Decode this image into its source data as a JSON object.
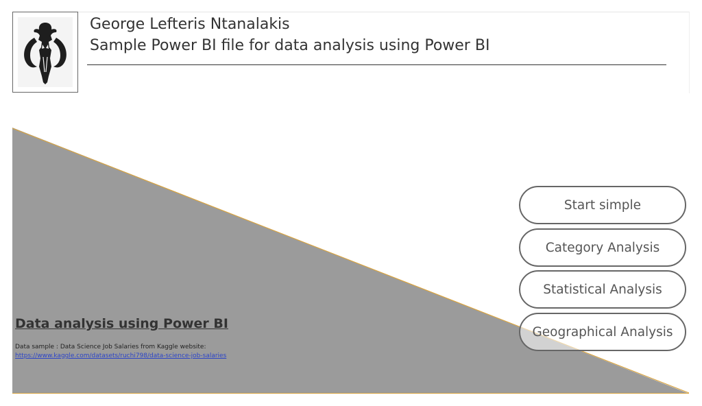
{
  "header": {
    "author": "George Lefteris Ntanalakis",
    "subtitle": "Sample Power BI file for data analysis using Power BI",
    "logo_icon": "mandalorian-mythosaur-skull-icon"
  },
  "main": {
    "title": "Data analysis using Power BI",
    "sample_note": "Data sample : Data Science Job Salaries from Kaggle website:",
    "sample_link": "https://www.kaggle.com/datasets/ruchi798/data-science-job-salaries"
  },
  "nav": {
    "buttons": [
      {
        "label": "Start simple"
      },
      {
        "label": "Category Analysis"
      },
      {
        "label": "Statistical Analysis"
      },
      {
        "label": "Geographical Analysis"
      }
    ]
  },
  "colors": {
    "wedge_fill": "#9b9b9b",
    "wedge_edge": "#d9a441",
    "link": "#2b44c8"
  }
}
